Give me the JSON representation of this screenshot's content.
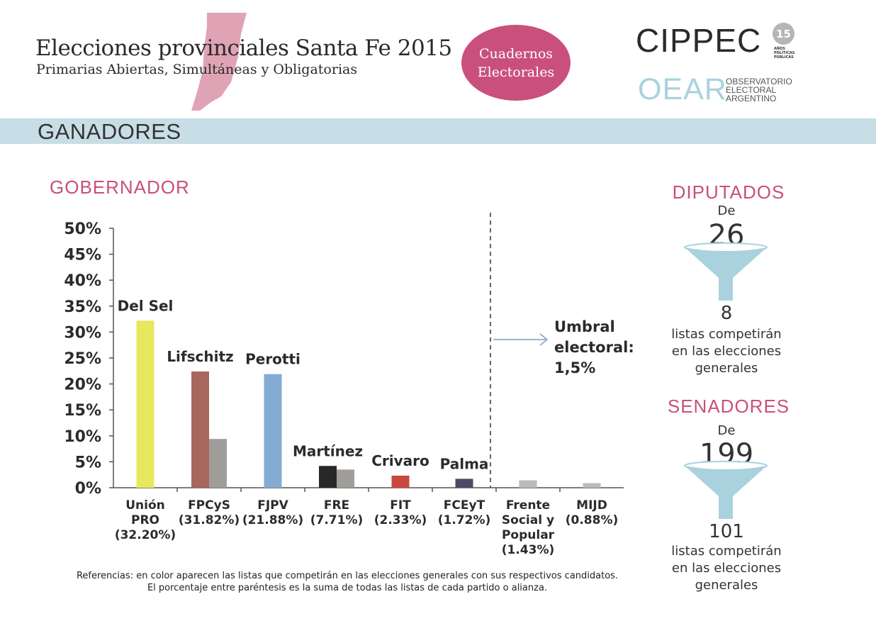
{
  "header": {
    "title": "Elecciones provinciales Santa Fe 2015",
    "subtitle": "Primarias Abiertas, Simultáneas y Obligatorias",
    "badge_line1": "Cuadernos",
    "badge_line2": "Electorales",
    "cippec": "CIPPEC",
    "cippec_badge": "15",
    "cippec_sub1": "AÑOS",
    "cippec_sub2": "POLÍTICAS",
    "cippec_sub3": "PÚBLICAS",
    "oear": "OEAR",
    "oear_sub1": "OBSERVATORIO",
    "oear_sub2": "ELECTORAL",
    "oear_sub3": "ARGENTINO"
  },
  "section_title": "GANADORES",
  "chart_title": "GOBERNADOR",
  "chart_data": {
    "type": "bar",
    "title": "GOBERNADOR",
    "ylim": [
      0,
      50
    ],
    "yticks": [
      "0%",
      "5%",
      "10%",
      "15%",
      "20%",
      "25%",
      "30%",
      "35%",
      "40%",
      "45%",
      "50%"
    ],
    "categories": [
      {
        "lines": [
          "Unión",
          "PRO",
          "(32.20%)"
        ]
      },
      {
        "lines": [
          "FPCyS",
          "(31.82%)"
        ]
      },
      {
        "lines": [
          "FJPV",
          "(21.88%)"
        ]
      },
      {
        "lines": [
          "FRE",
          "(7.71%)"
        ]
      },
      {
        "lines": [
          "FIT",
          "(2.33%)"
        ]
      },
      {
        "lines": [
          "FCEyT",
          "(1.72%)"
        ]
      },
      {
        "lines": [
          "Frente",
          "Social y",
          "Popular",
          "(1.43%)"
        ]
      },
      {
        "lines": [
          "MIJD",
          "(0.88%)"
        ]
      }
    ],
    "series": [
      {
        "name": "winner",
        "values": [
          32.2,
          22.4,
          21.9,
          4.2,
          2.33,
          1.72,
          null,
          null
        ],
        "colors": [
          "#e8e85e",
          "#a7675f",
          "#84abd3",
          "#282828",
          "#c9473d",
          "#4d4868",
          null,
          null
        ]
      },
      {
        "name": "others",
        "values": [
          null,
          9.4,
          null,
          3.5,
          null,
          null,
          1.43,
          0.88
        ],
        "colors": [
          null,
          "#a09d9a",
          null,
          "#a09d9a",
          null,
          null,
          "#bcbab8",
          "#bcbab8"
        ]
      }
    ],
    "candidate_labels": [
      "Del Sel",
      "Lifschitz",
      "Perotti",
      "Martínez",
      "Crivaro",
      "Palma"
    ],
    "threshold_label": [
      "Umbral",
      "electoral:",
      "1,5%"
    ]
  },
  "references": {
    "line1": "Referencias: en color aparecen las listas que competirán en las elecciones generales con sus respectivos candidatos.",
    "line2": "El porcentaje entre paréntesis es la suma de todas las listas de cada partido o alianza."
  },
  "diputados": {
    "title": "DIPUTADOS",
    "de": "De",
    "from": "26",
    "to": "8",
    "text1": "listas competirán",
    "text2": "en las elecciones",
    "text3": "generales"
  },
  "senadores": {
    "title": "SENADORES",
    "de": "De",
    "from": "199",
    "to": "101",
    "text1": "listas competirán",
    "text2": "en las elecciones",
    "text3": "generales"
  },
  "colors": {
    "accent": "#c9507c",
    "band": "#c7dee6",
    "funnel": "#a9d2de"
  }
}
